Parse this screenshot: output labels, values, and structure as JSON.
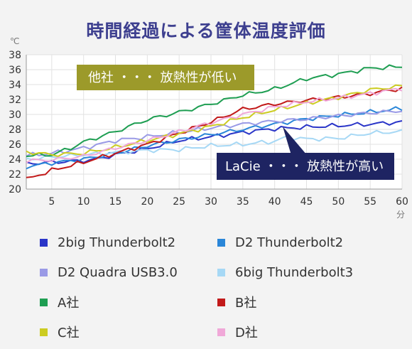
{
  "chart_data": {
    "type": "line",
    "title": "時間経過による筐体温度評価",
    "y_unit": "℃",
    "x_unit": "分",
    "xlim": [
      1,
      60
    ],
    "ylim": [
      20,
      38
    ],
    "x_ticks": [
      5,
      10,
      15,
      20,
      25,
      30,
      35,
      40,
      45,
      50,
      55,
      60
    ],
    "y_ticks": [
      20,
      22,
      24,
      26,
      28,
      30,
      32,
      34,
      36,
      38
    ],
    "grid": true,
    "legend_position": "bottom",
    "annotations": [
      {
        "text": "他社 ・・・ 放熱性が低い",
        "color": "#9c9a2a"
      },
      {
        "text": "LaCie ・・・ 放熱性が高い",
        "color": "#1e2462"
      }
    ],
    "series": [
      {
        "name": "2big Thunderbolt2",
        "color": "#2a35c8",
        "keypoints": [
          [
            1,
            23.4
          ],
          [
            5,
            23.6
          ],
          [
            10,
            23.8
          ],
          [
            12,
            24.0
          ],
          [
            15,
            24.6
          ],
          [
            20,
            25.4
          ],
          [
            25,
            26.5
          ],
          [
            30,
            27.0
          ],
          [
            35,
            27.6
          ],
          [
            40,
            28.1
          ],
          [
            45,
            28.3
          ],
          [
            50,
            28.5
          ],
          [
            55,
            28.7
          ],
          [
            60,
            29.0
          ]
        ]
      },
      {
        "name": "D2 Thunderbolt2",
        "color": "#2a86d8",
        "keypoints": [
          [
            1,
            23.0
          ],
          [
            5,
            23.5
          ],
          [
            10,
            24.0
          ],
          [
            15,
            24.8
          ],
          [
            20,
            25.8
          ],
          [
            25,
            26.6
          ],
          [
            30,
            27.3
          ],
          [
            35,
            28.0
          ],
          [
            40,
            28.7
          ],
          [
            45,
            29.4
          ],
          [
            50,
            29.9
          ],
          [
            55,
            30.3
          ],
          [
            60,
            30.8
          ]
        ]
      },
      {
        "name": "D2 Quadra USB3.0",
        "color": "#9a9ae6",
        "keypoints": [
          [
            1,
            24.5
          ],
          [
            5,
            24.8
          ],
          [
            10,
            25.5
          ],
          [
            15,
            26.5
          ],
          [
            20,
            27.0
          ],
          [
            25,
            27.6
          ],
          [
            30,
            28.2
          ],
          [
            35,
            28.7
          ],
          [
            40,
            29.1
          ],
          [
            45,
            29.4
          ],
          [
            50,
            29.8
          ],
          [
            55,
            30.2
          ],
          [
            60,
            30.5
          ]
        ]
      },
      {
        "name": "6big Thunderbolt3",
        "color": "#a6d8f5",
        "keypoints": [
          [
            1,
            24.0
          ],
          [
            5,
            24.3
          ],
          [
            10,
            24.6
          ],
          [
            15,
            24.9
          ],
          [
            20,
            25.2
          ],
          [
            25,
            25.3
          ],
          [
            30,
            25.8
          ],
          [
            35,
            26.0
          ],
          [
            40,
            26.4
          ],
          [
            42,
            27.0
          ],
          [
            45,
            26.7
          ],
          [
            50,
            26.8
          ],
          [
            55,
            27.5
          ],
          [
            60,
            27.7
          ]
        ]
      },
      {
        "name": "A社",
        "color": "#1e9e52",
        "keypoints": [
          [
            1,
            24.5
          ],
          [
            5,
            24.6
          ],
          [
            8,
            25.5
          ],
          [
            10,
            26.3
          ],
          [
            15,
            27.7
          ],
          [
            20,
            29.3
          ],
          [
            25,
            30.3
          ],
          [
            30,
            31.4
          ],
          [
            35,
            32.6
          ],
          [
            40,
            33.4
          ],
          [
            45,
            34.8
          ],
          [
            50,
            35.4
          ],
          [
            55,
            36.2
          ],
          [
            60,
            36.4
          ]
        ]
      },
      {
        "name": "B社",
        "color": "#c21a1a",
        "keypoints": [
          [
            1,
            21.3
          ],
          [
            5,
            22.5
          ],
          [
            10,
            23.6
          ],
          [
            15,
            24.8
          ],
          [
            20,
            26.0
          ],
          [
            25,
            27.5
          ],
          [
            30,
            29.0
          ],
          [
            35,
            30.7
          ],
          [
            40,
            31.4
          ],
          [
            45,
            31.9
          ],
          [
            50,
            32.3
          ],
          [
            55,
            32.8
          ],
          [
            60,
            33.5
          ]
        ]
      },
      {
        "name": "C社",
        "color": "#cccc22",
        "keypoints": [
          [
            1,
            25.0
          ],
          [
            5,
            24.6
          ],
          [
            10,
            24.8
          ],
          [
            15,
            25.6
          ],
          [
            20,
            26.5
          ],
          [
            25,
            27.4
          ],
          [
            30,
            28.4
          ],
          [
            35,
            29.6
          ],
          [
            40,
            30.6
          ],
          [
            45,
            31.5
          ],
          [
            50,
            32.3
          ],
          [
            55,
            33.3
          ],
          [
            60,
            33.8
          ]
        ]
      },
      {
        "name": "D社",
        "color": "#f0a8d8",
        "keypoints": [
          [
            1,
            23.8
          ],
          [
            5,
            23.9
          ],
          [
            10,
            24.4
          ],
          [
            15,
            25.5
          ],
          [
            20,
            26.5
          ],
          [
            25,
            27.7
          ],
          [
            30,
            28.9
          ],
          [
            35,
            30.0
          ],
          [
            40,
            31.0
          ],
          [
            45,
            31.7
          ],
          [
            50,
            32.2
          ],
          [
            55,
            32.8
          ],
          [
            60,
            33.5
          ]
        ]
      }
    ]
  }
}
